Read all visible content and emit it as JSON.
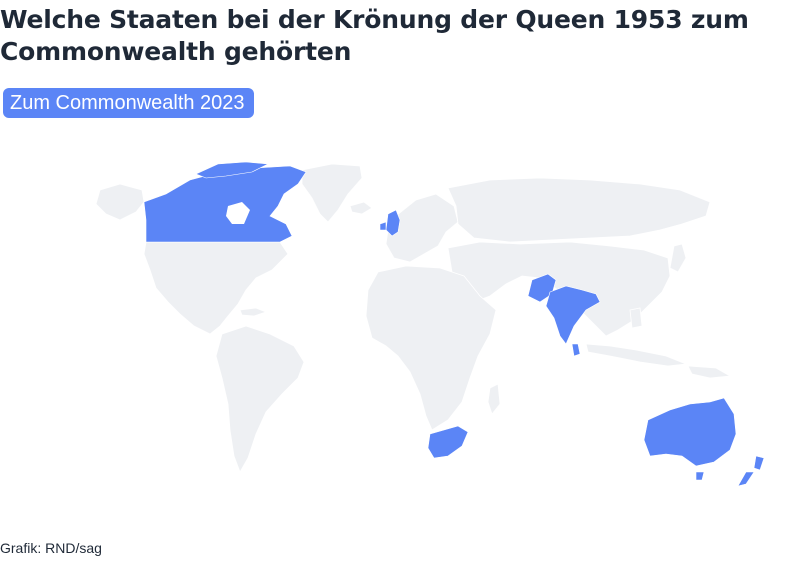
{
  "title": "Welche Staaten bei der Krönung der Queen 1953 zum Commonwealth gehörten",
  "toggle_button": "Zum Commonwealth 2023",
  "credit": "Grafik: RND/sag",
  "colors": {
    "highlight": "#5b85f6",
    "land": "#eef0f3",
    "border": "#ffffff",
    "text": "#1f2937"
  },
  "map": {
    "highlighted_countries": [
      "Canada",
      "United Kingdom",
      "India",
      "Pakistan",
      "Ceylon (Sri Lanka)",
      "South Africa",
      "Australia",
      "New Zealand"
    ]
  }
}
